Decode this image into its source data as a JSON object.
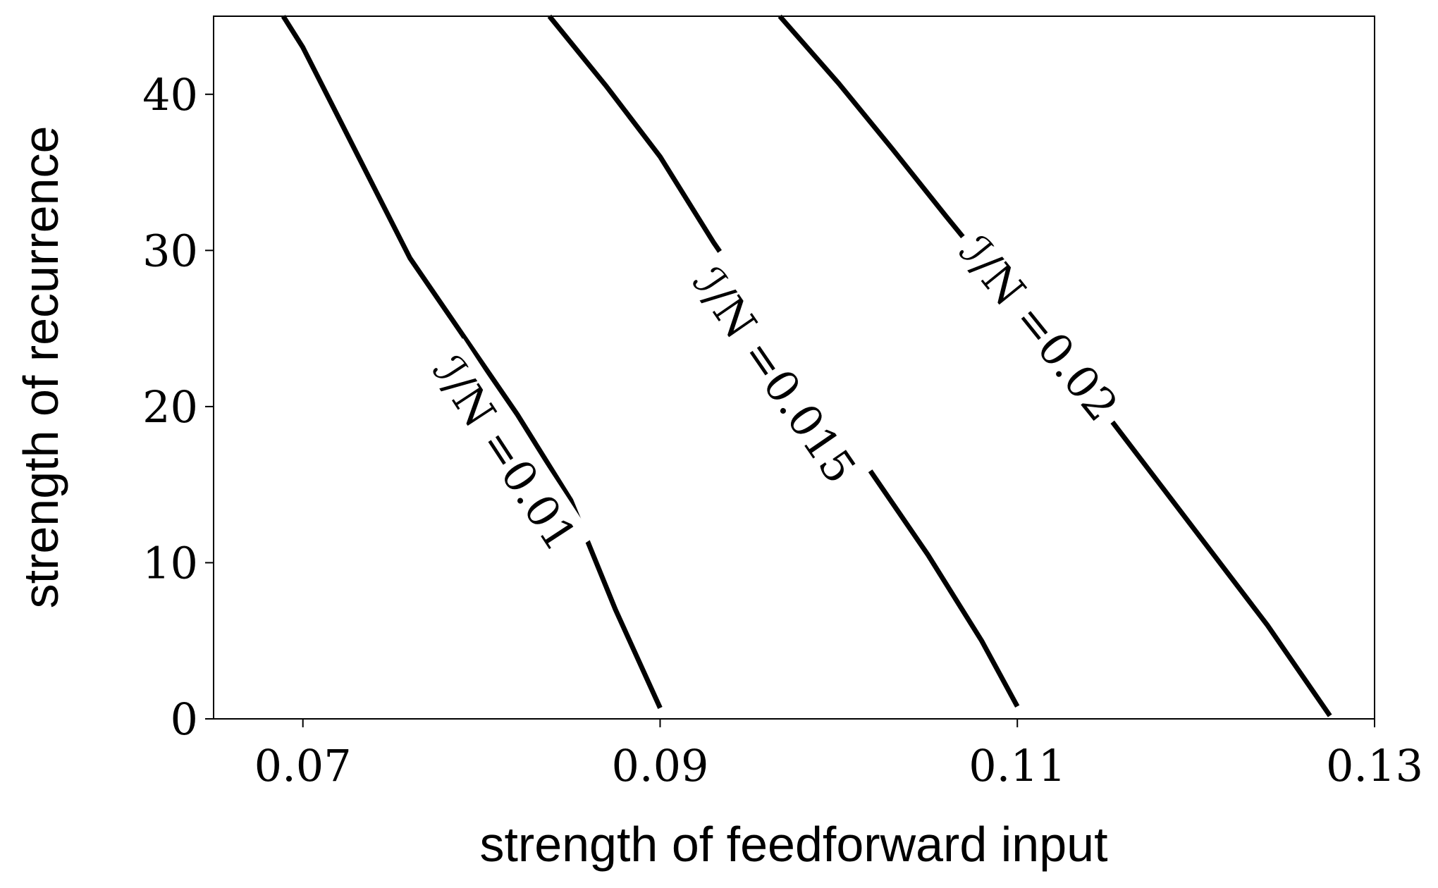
{
  "chart_data": {
    "type": "line",
    "title": "",
    "xlabel": "strength of feedforward input",
    "ylabel": "strength of recurrence",
    "xlim": [
      0.065,
      0.13
    ],
    "ylim": [
      0,
      45
    ],
    "xticks": [
      0.07,
      0.09,
      0.11,
      0.13
    ],
    "xtick_labels": [
      "0.07",
      "0.09",
      "0.11",
      "0.13"
    ],
    "yticks": [
      0,
      10,
      20,
      30,
      40
    ],
    "ytick_labels": [
      "0",
      "10",
      "20",
      "30",
      "40"
    ],
    "grid": false,
    "series": [
      {
        "name": "ℐ/N =0.01",
        "x": [
          0.0689,
          0.07,
          0.072,
          0.074,
          0.076,
          0.079,
          0.082,
          0.085,
          0.0875,
          0.09
        ],
        "y": [
          45,
          43,
          38.5,
          34,
          29.5,
          24.5,
          19.5,
          14,
          7,
          0.7
        ],
        "label_at": [
          0.0813,
          17
        ]
      },
      {
        "name": "ℐ/N =0.015",
        "x": [
          0.0838,
          0.087,
          0.09,
          0.093,
          0.096,
          0.099,
          0.102,
          0.105,
          0.108,
          0.11
        ],
        "y": [
          45,
          40.5,
          36,
          30.5,
          25.5,
          20.5,
          15.5,
          10.5,
          5,
          0.8
        ],
        "label_at": [
          0.0964,
          22
        ]
      },
      {
        "name": "ℐ/N =0.02",
        "x": [
          0.0967,
          0.1,
          0.103,
          0.106,
          0.109,
          0.112,
          0.115,
          0.12,
          0.124,
          0.1275
        ],
        "y": [
          45,
          40.7,
          36.5,
          32.2,
          28,
          23.7,
          19.5,
          12,
          6,
          0.2
        ],
        "label_at": [
          0.1112,
          25
        ]
      }
    ]
  }
}
